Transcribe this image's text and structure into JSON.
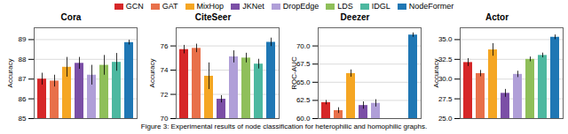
{
  "chart_data": [
    {
      "type": "bar",
      "title": "Cora",
      "ylabel": "Accuracy",
      "categories": [
        "GCN",
        "GAT",
        "MixHop",
        "JKNet",
        "DropEdge",
        "LDS",
        "IDGL",
        "NodeFormer"
      ],
      "values": [
        87.0,
        86.9,
        87.6,
        87.8,
        87.2,
        87.7,
        87.85,
        88.85
      ],
      "errors": [
        0.3,
        0.3,
        0.5,
        0.3,
        0.5,
        0.5,
        0.45,
        0.12
      ],
      "colors": [
        "#d62728",
        "#e8704a",
        "#f5a623",
        "#7b4fa6",
        "#b09fd8",
        "#8fbf5a",
        "#4db8a0",
        "#1f77b4"
      ],
      "ylim": [
        85,
        89.6
      ],
      "yticks": [
        85,
        86,
        87,
        88,
        89
      ],
      "grid": true,
      "legend": "top",
      "tick_labels": "y"
    },
    {
      "type": "bar",
      "title": "CiteSeer",
      "ylabel": "Accuracy",
      "categories": [
        "GCN",
        "GAT",
        "MixHop",
        "JKNet",
        "DropEdge",
        "LDS",
        "IDGL",
        "NodeFormer"
      ],
      "values": [
        75.7,
        75.8,
        73.5,
        71.6,
        75.1,
        75.0,
        74.5,
        76.3
      ],
      "errors": [
        0.35,
        0.35,
        1.1,
        0.3,
        0.5,
        0.4,
        0.4,
        0.35
      ],
      "colors": [
        "#d62728",
        "#e8704a",
        "#f5a623",
        "#7b4fa6",
        "#b09fd8",
        "#8fbf5a",
        "#4db8a0",
        "#1f77b4"
      ],
      "ylim": [
        70,
        77.5
      ],
      "yticks": [
        70,
        72,
        74,
        76
      ],
      "grid": true,
      "legend": "top",
      "tick_labels": "y"
    },
    {
      "type": "bar",
      "title": "Deezer",
      "ylabel": "ROC-AUC",
      "categories": [
        "GCN",
        "GAT",
        "MixHop",
        "JKNet",
        "DropEdge",
        "LDS",
        "IDGL",
        "NodeFormer"
      ],
      "values": [
        62.2,
        61.1,
        66.2,
        61.8,
        62.1,
        null,
        null,
        71.5
      ],
      "errors": [
        0.3,
        0.4,
        0.5,
        0.5,
        0.5,
        null,
        null,
        0.3
      ],
      "colors": [
        "#d62728",
        "#e8704a",
        "#f5a623",
        "#7b4fa6",
        "#b09fd8",
        "#8fbf5a",
        "#4db8a0",
        "#1f77b4"
      ],
      "ylim": [
        60.0,
        72.5
      ],
      "yticks": [
        {
          "value": 60,
          "label": "60.0"
        },
        62.5,
        {
          "value": 65,
          "label": "65.0"
        },
        67.5,
        {
          "value": 70,
          "label": "70.0"
        }
      ],
      "grid": true,
      "legend": "top",
      "tick_labels": "y"
    },
    {
      "type": "bar",
      "title": "Actor",
      "ylabel": "Accuracy",
      "categories": [
        "GCN",
        "GAT",
        "MixHop",
        "JKNet",
        "DropEdge",
        "LDS",
        "IDGL",
        "NodeFormer"
      ],
      "values": [
        32.1,
        30.7,
        33.7,
        28.2,
        30.6,
        32.5,
        33.0,
        35.3
      ],
      "errors": [
        0.5,
        0.4,
        0.8,
        0.5,
        0.4,
        0.3,
        0.3,
        0.3
      ],
      "colors": [
        "#d62728",
        "#e8704a",
        "#f5a623",
        "#7b4fa6",
        "#b09fd8",
        "#8fbf5a",
        "#4db8a0",
        "#1f77b4"
      ],
      "ylim": [
        25.0,
        36.5
      ],
      "yticks": [
        {
          "value": 25,
          "label": "25.0"
        },
        27.5,
        {
          "value": 30,
          "label": "30.0"
        },
        32.5,
        {
          "value": 35,
          "label": "35.0"
        }
      ],
      "grid": true,
      "legend": "top",
      "tick_labels": "y"
    }
  ],
  "caption": "Figure 3: Experimental results of node classification for heterophilic and homophilic graphs."
}
